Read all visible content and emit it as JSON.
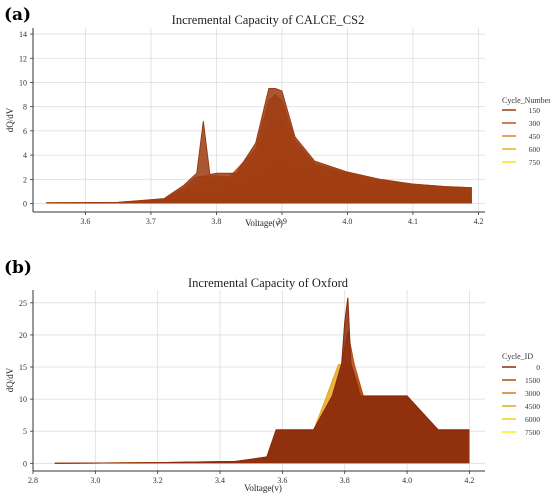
{
  "chart_data": [
    {
      "panel_label": "(a)",
      "type": "line",
      "title": "Incremental Capacity of CALCE_CS2",
      "xlabel": "Voltage(v)",
      "ylabel": "dQ/dV",
      "xlim": [
        3.52,
        4.21
      ],
      "ylim": [
        -0.7,
        14.5
      ],
      "xticks": [
        3.6,
        3.7,
        3.8,
        3.9,
        4.0,
        4.1,
        4.2
      ],
      "yticks": [
        0,
        2,
        4,
        6,
        8,
        10,
        12,
        14
      ],
      "grid": true,
      "legend": {
        "title": "Cycle_Number",
        "position": "right"
      },
      "series": [
        {
          "name": "150",
          "color": "#9b3a10",
          "x": [
            3.54,
            3.65,
            3.72,
            3.75,
            3.77,
            3.78,
            3.79,
            3.8,
            3.83,
            3.86,
            3.88,
            3.89,
            3.9,
            3.92,
            3.95,
            4.0,
            4.05,
            4.1,
            4.15,
            4.19
          ],
          "y": [
            0.05,
            0.1,
            0.4,
            1.5,
            2.5,
            6.8,
            2.4,
            2.5,
            2.5,
            5.0,
            9.5,
            9.5,
            9.3,
            5.5,
            3.5,
            2.6,
            2.0,
            1.6,
            1.4,
            1.3
          ]
        },
        {
          "name": "300",
          "color": "#c0501a",
          "x": [
            3.54,
            3.65,
            3.72,
            3.75,
            3.77,
            3.79,
            3.82,
            3.86,
            3.88,
            3.89,
            3.9,
            3.92,
            3.95,
            4.0,
            4.05,
            4.1,
            4.15,
            4.19
          ],
          "y": [
            0.05,
            0.1,
            0.35,
            1.3,
            2.2,
            2.3,
            2.2,
            4.5,
            8.5,
            9.0,
            8.5,
            5.2,
            3.3,
            2.5,
            1.9,
            1.6,
            1.4,
            1.3
          ]
        },
        {
          "name": "450",
          "color": "#d9861f",
          "x": [
            3.54,
            3.65,
            3.72,
            3.75,
            3.78,
            3.82,
            3.86,
            3.88,
            3.89,
            3.9,
            3.92,
            3.95,
            4.0,
            4.05,
            4.1,
            4.15,
            4.19
          ],
          "y": [
            0.05,
            0.1,
            0.3,
            1.0,
            1.8,
            1.8,
            3.8,
            6.5,
            7.0,
            6.8,
            4.6,
            3.1,
            2.4,
            1.8,
            1.5,
            1.3,
            1.2
          ]
        },
        {
          "name": "600",
          "color": "#e8b022",
          "x": [
            3.54,
            3.65,
            3.72,
            3.75,
            3.78,
            3.82,
            3.86,
            3.88,
            3.89,
            3.9,
            3.92,
            3.95,
            4.0,
            4.05,
            4.1,
            4.15,
            4.19
          ],
          "y": [
            0.05,
            0.1,
            0.25,
            0.8,
            1.4,
            1.4,
            2.9,
            4.5,
            5.0,
            4.8,
            3.8,
            2.8,
            2.2,
            1.7,
            1.4,
            1.2,
            1.1
          ]
        },
        {
          "name": "750",
          "color": "#f2e21c",
          "x": [
            3.54,
            3.65,
            3.72,
            3.75,
            3.78,
            3.82,
            3.86,
            3.88,
            3.9,
            3.92,
            3.95,
            4.0,
            4.05,
            4.1,
            4.15,
            4.19
          ],
          "y": [
            0.05,
            0.1,
            0.2,
            0.6,
            1.0,
            1.1,
            2.0,
            3.0,
            3.3,
            3.0,
            2.5,
            2.0,
            1.6,
            1.3,
            1.1,
            1.0
          ]
        }
      ]
    },
    {
      "panel_label": "(b)",
      "type": "line",
      "title": "Incremental Capacity of Oxford",
      "xlabel": "Voltage(v)",
      "ylabel": "dQ/dV",
      "xlim": [
        2.8,
        4.25
      ],
      "ylim": [
        -1.2,
        27
      ],
      "xticks": [
        2.8,
        3.0,
        3.2,
        3.4,
        3.6,
        3.8,
        4.0,
        4.2
      ],
      "yticks": [
        0,
        5,
        10,
        15,
        20,
        25
      ],
      "grid": true,
      "legend": {
        "title": "Cycle_ID",
        "position": "right"
      },
      "series": [
        {
          "name": "0",
          "color": "#8b2a0c",
          "x": [
            2.87,
            3.2,
            3.45,
            3.55,
            3.58,
            3.62,
            3.7,
            3.76,
            3.79,
            3.8,
            3.81,
            3.82,
            3.85,
            3.9,
            3.95,
            4.0,
            4.1,
            4.2
          ],
          "y": [
            0.0,
            0.1,
            0.3,
            1.0,
            5.2,
            5.2,
            5.2,
            10.5,
            15.5,
            22.0,
            25.8,
            15.5,
            10.5,
            10.5,
            10.5,
            10.5,
            5.2,
            5.2
          ]
        },
        {
          "name": "1500",
          "color": "#b24a14",
          "x": [
            2.87,
            3.2,
            3.45,
            3.55,
            3.58,
            3.62,
            3.7,
            3.76,
            3.79,
            3.81,
            3.83,
            3.86,
            3.9,
            3.95,
            4.0,
            4.1,
            4.2
          ],
          "y": [
            0.0,
            0.1,
            0.3,
            0.9,
            5.2,
            5.2,
            5.2,
            10.4,
            15.5,
            20.5,
            15.5,
            10.4,
            10.4,
            10.4,
            10.4,
            5.2,
            5.2
          ]
        },
        {
          "name": "3000",
          "color": "#d47a1c",
          "x": [
            2.87,
            3.2,
            3.45,
            3.55,
            3.59,
            3.65,
            3.72,
            3.77,
            3.8,
            3.82,
            3.86,
            3.92,
            4.0,
            4.1,
            4.2
          ],
          "y": [
            0.0,
            0.1,
            0.2,
            0.8,
            5.2,
            5.2,
            5.2,
            10.3,
            15.5,
            15.5,
            10.3,
            10.3,
            10.3,
            5.2,
            5.2
          ]
        },
        {
          "name": "4500",
          "color": "#e6a81f",
          "x": [
            2.87,
            3.2,
            3.45,
            3.55,
            3.6,
            3.7,
            3.74,
            3.78,
            3.82,
            3.86,
            3.9,
            4.0,
            4.1,
            4.2
          ],
          "y": [
            0.0,
            0.1,
            0.2,
            0.7,
            5.1,
            5.1,
            10.2,
            15.4,
            15.4,
            10.2,
            10.2,
            10.2,
            5.1,
            5.1
          ]
        },
        {
          "name": "6000",
          "color": "#f0cf1e",
          "x": [
            2.87,
            3.2,
            3.45,
            3.55,
            3.62,
            3.72,
            3.78,
            3.84,
            3.9,
            4.0,
            4.1,
            4.2
          ],
          "y": [
            0.0,
            0.1,
            0.2,
            0.6,
            5.1,
            5.1,
            10.2,
            10.2,
            10.2,
            10.2,
            5.1,
            5.1
          ]
        },
        {
          "name": "7500",
          "color": "#f7ee14",
          "x": [
            2.87,
            3.2,
            3.45,
            3.55,
            3.62,
            3.72,
            3.8,
            3.88,
            3.95,
            4.05,
            4.2
          ],
          "y": [
            0.0,
            0.1,
            0.2,
            0.5,
            5.0,
            5.0,
            10.1,
            10.1,
            10.1,
            5.0,
            5.0
          ]
        }
      ]
    }
  ]
}
